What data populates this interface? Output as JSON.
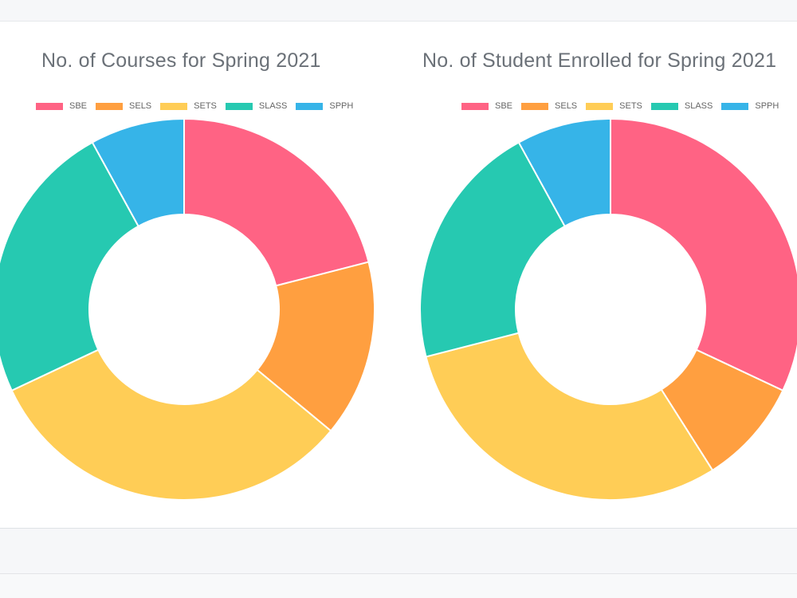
{
  "chart_data": [
    {
      "type": "pie",
      "title": "No. of Courses for Spring 2021",
      "categories": [
        "SBE",
        "SELS",
        "SETS",
        "SLASS",
        "SPPH"
      ],
      "values": [
        21,
        15,
        32,
        24,
        8
      ],
      "colors": [
        "#ff6384",
        "#ff9f40",
        "#ffcd56",
        "#26c9b1",
        "#36b4e8"
      ],
      "legend_position": "top"
    },
    {
      "type": "pie",
      "title": "No. of Student Enrolled for Spring 2021",
      "categories": [
        "SBE",
        "SELS",
        "SETS",
        "SLASS",
        "SPPH"
      ],
      "values": [
        32,
        9,
        30,
        21,
        8
      ],
      "colors": [
        "#ff6384",
        "#ff9f40",
        "#ffcd56",
        "#26c9b1",
        "#36b4e8"
      ],
      "legend_position": "top"
    }
  ]
}
